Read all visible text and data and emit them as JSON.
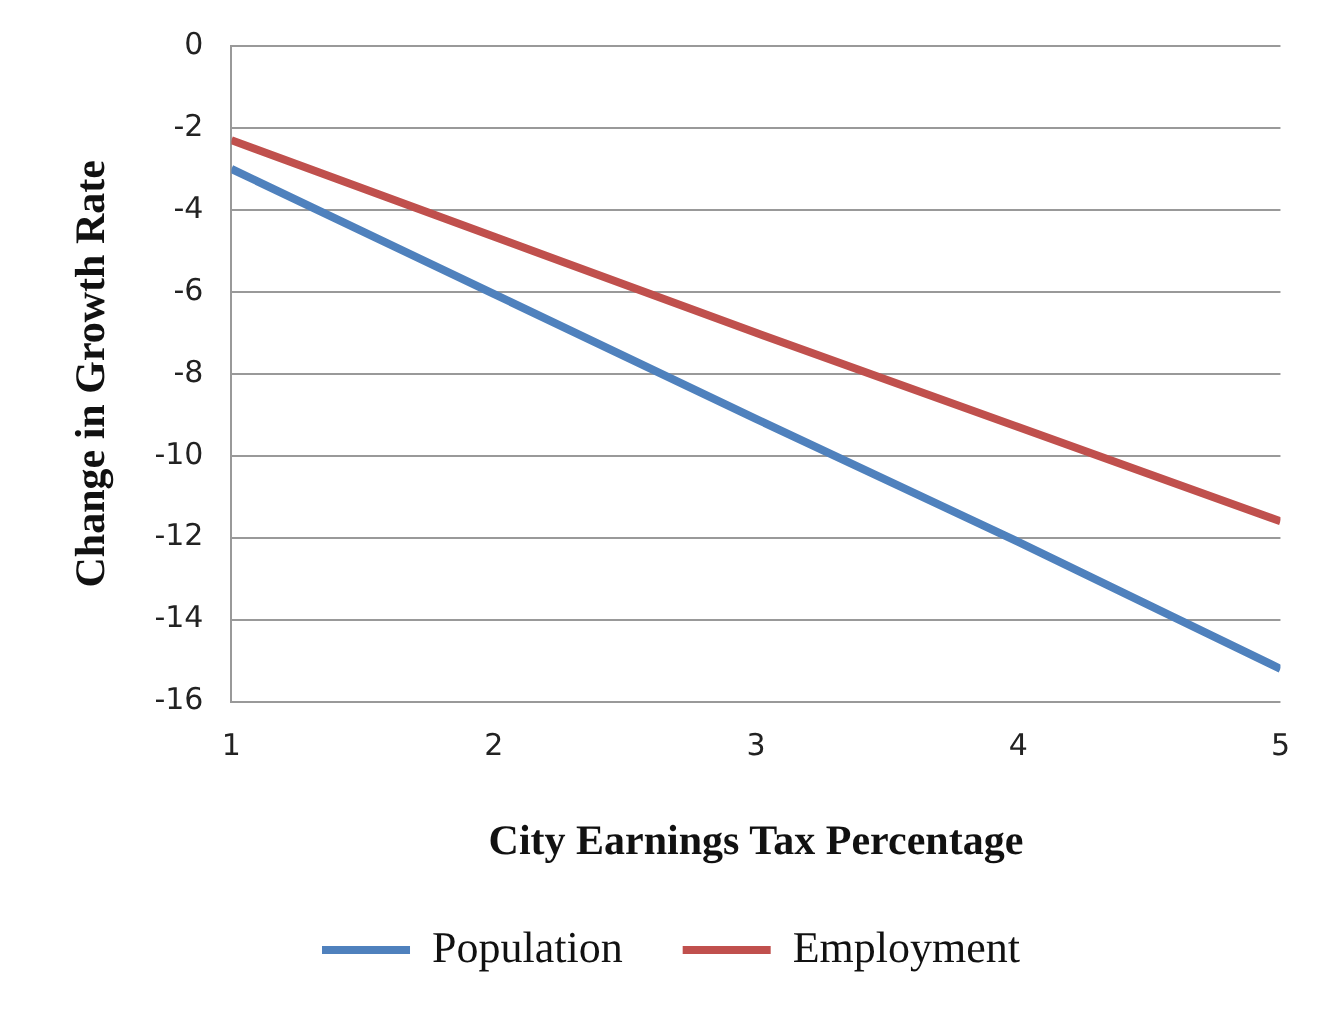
{
  "chart_data": {
    "type": "line",
    "xlabel": "City Earnings Tax Percentage",
    "ylabel": "Change in Growth Rate",
    "x": [
      1,
      2,
      3,
      4,
      5
    ],
    "series": [
      {
        "name": "Population",
        "color": "#4f81bd",
        "values": [
          -3,
          -6.05,
          -9.1,
          -12.1,
          -15.2
        ]
      },
      {
        "name": "Employment",
        "color": "#c0504d",
        "values": [
          -2.3,
          -4.65,
          -7,
          -9.3,
          -11.6
        ]
      }
    ],
    "xlim": [
      1,
      5
    ],
    "xticks": [
      1,
      2,
      3,
      4,
      5
    ],
    "ylim": [
      -16,
      0
    ],
    "yticks": [
      -16,
      -14,
      -12,
      -10,
      -8,
      -6,
      -4,
      -2,
      0
    ],
    "grid": "y",
    "legend": "bottom",
    "marker": "none",
    "line_style": "solid"
  }
}
